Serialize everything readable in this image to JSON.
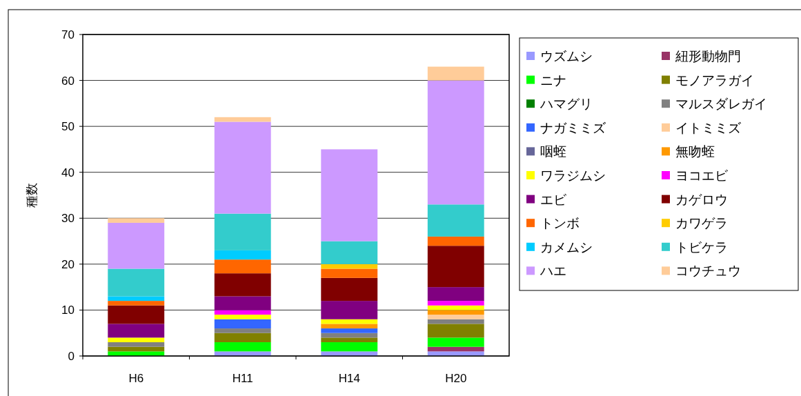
{
  "chart_data": {
    "type": "bar",
    "stacked": true,
    "ylabel": "種数",
    "categories": [
      "H6",
      "H11",
      "H14",
      "H20"
    ],
    "ylim": [
      0,
      70
    ],
    "yticks": [
      0,
      10,
      20,
      30,
      40,
      50,
      60,
      70
    ],
    "grid": "y",
    "legend": "right",
    "series": [
      {
        "name": "ウズムシ",
        "color": "#9999ff",
        "values": [
          0,
          1,
          1,
          1
        ]
      },
      {
        "name": "紐形動物門",
        "color": "#993366",
        "values": [
          0,
          0,
          0,
          1
        ]
      },
      {
        "name": "ニナ",
        "color": "#00ff00",
        "values": [
          1,
          2,
          2,
          2
        ]
      },
      {
        "name": "モノアラガイ",
        "color": "#808000",
        "values": [
          1,
          2,
          1,
          3
        ]
      },
      {
        "name": "ハマグリ",
        "color": "#008000",
        "values": [
          0,
          0,
          0,
          0
        ]
      },
      {
        "name": "マルスダレガイ",
        "color": "#808080",
        "values": [
          1,
          1,
          1,
          1
        ]
      },
      {
        "name": "ナガミミズ",
        "color": "#3366ff",
        "values": [
          0,
          2,
          1,
          0
        ]
      },
      {
        "name": "イトミミズ",
        "color": "#ffcc99",
        "values": [
          0,
          0,
          0,
          1
        ]
      },
      {
        "name": "咽蛭",
        "color": "#666699",
        "values": [
          0,
          0,
          0,
          0
        ]
      },
      {
        "name": "無吻蛭",
        "color": "#ff9900",
        "values": [
          0,
          0,
          1,
          1
        ]
      },
      {
        "name": "ワラジムシ",
        "color": "#ffff00",
        "values": [
          1,
          1,
          1,
          1
        ]
      },
      {
        "name": "ヨコエビ",
        "color": "#ff00ff",
        "values": [
          0,
          1,
          0,
          1
        ]
      },
      {
        "name": "エビ",
        "color": "#800080",
        "values": [
          3,
          3,
          4,
          3
        ]
      },
      {
        "name": "カゲロウ",
        "color": "#800000",
        "values": [
          4,
          5,
          5,
          9
        ]
      },
      {
        "name": "トンボ",
        "color": "#ff6600",
        "values": [
          1,
          3,
          2,
          2
        ]
      },
      {
        "name": "カワゲラ",
        "color": "#ffcc00",
        "values": [
          0,
          0,
          1,
          0
        ]
      },
      {
        "name": "カメムシ",
        "color": "#00ccff",
        "values": [
          1,
          2,
          0,
          0
        ]
      },
      {
        "name": "トビケラ",
        "color": "#33cccc",
        "values": [
          6,
          8,
          5,
          7
        ]
      },
      {
        "name": "ハエ",
        "color": "#cc99ff",
        "values": [
          10,
          20,
          20,
          27
        ]
      },
      {
        "name": "コウチュウ",
        "color": "#ffcc99",
        "values": [
          1,
          1,
          0,
          3
        ]
      }
    ]
  }
}
